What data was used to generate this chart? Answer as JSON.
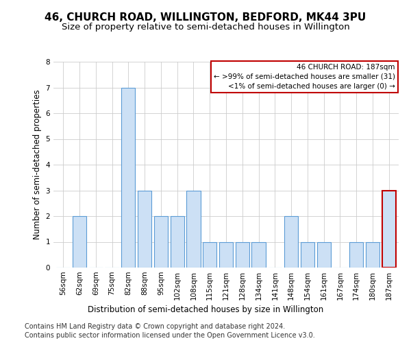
{
  "title": "46, CHURCH ROAD, WILLINGTON, BEDFORD, MK44 3PU",
  "subtitle": "Size of property relative to semi-detached houses in Willington",
  "xlabel": "Distribution of semi-detached houses by size in Willington",
  "ylabel": "Number of semi-detached properties",
  "categories": [
    "56sqm",
    "62sqm",
    "69sqm",
    "75sqm",
    "82sqm",
    "88sqm",
    "95sqm",
    "102sqm",
    "108sqm",
    "115sqm",
    "121sqm",
    "128sqm",
    "134sqm",
    "141sqm",
    "148sqm",
    "154sqm",
    "161sqm",
    "167sqm",
    "174sqm",
    "180sqm",
    "187sqm"
  ],
  "values": [
    0,
    2,
    0,
    0,
    7,
    3,
    2,
    2,
    3,
    1,
    1,
    1,
    1,
    0,
    2,
    1,
    1,
    0,
    1,
    1,
    3
  ],
  "highlight_index": 20,
  "bar_color": "#cce0f5",
  "bar_edge_color": "#5b9bd5",
  "highlight_bar_edge_color": "#c00000",
  "box_edge_color": "#c00000",
  "ylim": [
    0,
    8
  ],
  "yticks": [
    0,
    1,
    2,
    3,
    4,
    5,
    6,
    7,
    8
  ],
  "legend_title": "46 CHURCH ROAD: 187sqm",
  "legend_line1": "← >99% of semi-detached houses are smaller (31)",
  "legend_line2": "<1% of semi-detached houses are larger (0) →",
  "footer1": "Contains HM Land Registry data © Crown copyright and database right 2024.",
  "footer2": "Contains public sector information licensed under the Open Government Licence v3.0.",
  "title_fontsize": 11,
  "subtitle_fontsize": 9.5,
  "axis_label_fontsize": 8.5,
  "tick_fontsize": 7.5,
  "footer_fontsize": 7,
  "legend_fontsize": 7.5
}
